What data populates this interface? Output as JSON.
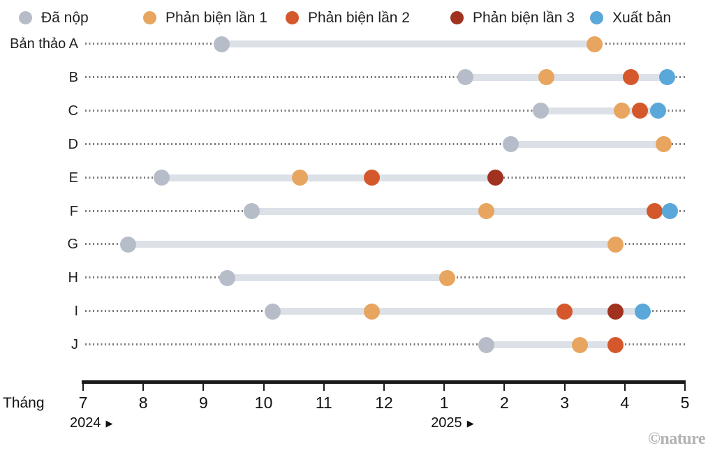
{
  "legend": {
    "items": [
      {
        "key": "submitted",
        "label": "Đã nộp",
        "color": "#b6bdc8"
      },
      {
        "key": "review1",
        "label": "Phản biện lần 1",
        "color": "#e7a55f"
      },
      {
        "key": "review2",
        "label": "Phản biện lần 2",
        "color": "#d4582b"
      },
      {
        "key": "review3",
        "label": "Phản biện lần 3",
        "color": "#a13220"
      },
      {
        "key": "published",
        "label": "Xuất bản",
        "color": "#5aa7d9"
      }
    ]
  },
  "chart_data": {
    "type": "timeline",
    "title": "",
    "description": "Peer-review timelines of manuscripts A–J. t is a continuous month index: 7 = Jul 2024, 12 = Dec 2024, 13 = Jan 2025, 17 = May 2025.",
    "x_axis": {
      "label": "Tháng",
      "tick_months": [
        7,
        8,
        9,
        10,
        11,
        12,
        1,
        2,
        3,
        4,
        5
      ],
      "t_range": [
        7,
        17
      ],
      "years": [
        {
          "label": "2024",
          "arrow": "▶",
          "t": 7
        },
        {
          "label": "2025",
          "arrow": "▶",
          "t": 13
        }
      ]
    },
    "styles": {
      "connector_color": "#dce1e8",
      "leader_dot_color": "#7d7d7d",
      "axis_color": "#1a1a1a"
    },
    "rows": [
      {
        "label": "Bản thảo A",
        "events": [
          {
            "stage": "submitted",
            "t": 9.3
          },
          {
            "stage": "review1",
            "t": 15.5
          }
        ]
      },
      {
        "label": "B",
        "events": [
          {
            "stage": "submitted",
            "t": 13.35
          },
          {
            "stage": "review1",
            "t": 14.7
          },
          {
            "stage": "review2",
            "t": 16.1
          },
          {
            "stage": "published",
            "t": 16.7
          }
        ]
      },
      {
        "label": "C",
        "events": [
          {
            "stage": "submitted",
            "t": 14.6
          },
          {
            "stage": "review1",
            "t": 15.95
          },
          {
            "stage": "review2",
            "t": 16.25
          },
          {
            "stage": "published",
            "t": 16.55
          }
        ]
      },
      {
        "label": "D",
        "events": [
          {
            "stage": "submitted",
            "t": 14.1
          },
          {
            "stage": "review1",
            "t": 16.65
          }
        ]
      },
      {
        "label": "E",
        "events": [
          {
            "stage": "submitted",
            "t": 8.3
          },
          {
            "stage": "review1",
            "t": 10.6
          },
          {
            "stage": "review2",
            "t": 11.8
          },
          {
            "stage": "review3",
            "t": 13.85
          }
        ]
      },
      {
        "label": "F",
        "events": [
          {
            "stage": "submitted",
            "t": 9.8
          },
          {
            "stage": "review1",
            "t": 13.7
          },
          {
            "stage": "review2",
            "t": 16.5
          },
          {
            "stage": "published",
            "t": 16.75
          }
        ]
      },
      {
        "label": "G",
        "events": [
          {
            "stage": "submitted",
            "t": 7.75
          },
          {
            "stage": "review1",
            "t": 15.85
          }
        ]
      },
      {
        "label": "H",
        "events": [
          {
            "stage": "submitted",
            "t": 9.4
          },
          {
            "stage": "review1",
            "t": 13.05
          }
        ]
      },
      {
        "label": "I",
        "events": [
          {
            "stage": "submitted",
            "t": 10.15
          },
          {
            "stage": "review1",
            "t": 11.8
          },
          {
            "stage": "review2",
            "t": 15.0
          },
          {
            "stage": "review3",
            "t": 15.85
          },
          {
            "stage": "published",
            "t": 16.3
          }
        ]
      },
      {
        "label": "J",
        "events": [
          {
            "stage": "submitted",
            "t": 13.7
          },
          {
            "stage": "review1",
            "t": 15.25
          },
          {
            "stage": "review2",
            "t": 15.85
          }
        ]
      }
    ]
  },
  "footer": {
    "credit": "©nature"
  }
}
